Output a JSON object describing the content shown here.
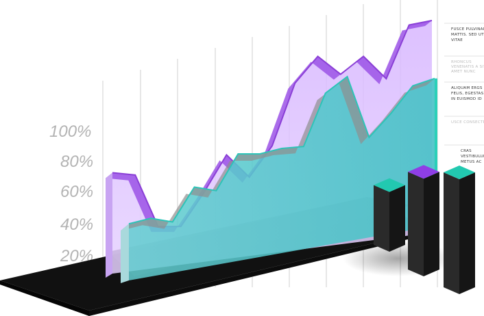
{
  "chart_data": {
    "type": "area",
    "title": "",
    "xlabel": "",
    "ylabel": "",
    "ylim": [
      0,
      100
    ],
    "y_ticks": [
      "20%",
      "40%",
      "60%",
      "80%",
      "100%"
    ],
    "grid": true,
    "legend_placement": "right",
    "legend": [
      {
        "text": "FUSCE PULVINAR EFFICIT MATTIS. SED UT TELLUS VITAE",
        "tone": "dark"
      },
      {
        "text": "RHONCUS VENENATIS A SIT AMET NUNC",
        "tone": "light"
      },
      {
        "text": "ALIQUAM ERGS FELIS, EGESTAS IN EUISMOD ID",
        "tone": "dark"
      },
      {
        "text": "USCE CONSECTET",
        "tone": "light"
      },
      {
        "text": "CRAS VESTIBULUM METUS AC",
        "tone": "dark"
      }
    ],
    "series": [
      {
        "color": "#8a3fd6",
        "fill": "#d9b8ff",
        "values": [
          42,
          41,
          18,
          18,
          33,
          50,
          40,
          54,
          82,
          94,
          86,
          94,
          84,
          108,
          110
        ]
      },
      {
        "color": "#2cc4b8",
        "fill": "#59c9cc",
        "values": [
          4,
          7,
          5,
          24,
          22,
          42,
          42,
          45,
          46,
          75,
          84,
          51,
          64,
          79,
          83
        ]
      }
    ],
    "blocks": [
      {
        "color": "#22c9b0",
        "value": 0.52
      },
      {
        "color": "#8f3ee6",
        "value": 0.85
      },
      {
        "color": "#22c9b0",
        "value": 1.0
      }
    ]
  }
}
